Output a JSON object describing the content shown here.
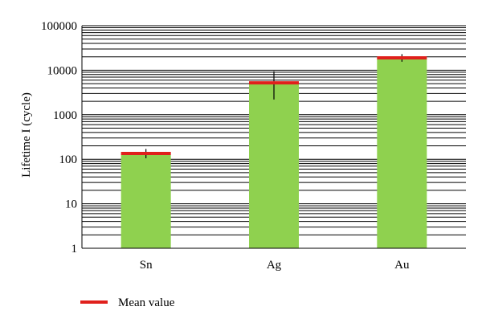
{
  "chart_data": {
    "type": "bar",
    "title": "",
    "xlabel": "",
    "ylabel": "Lifetime I (cycle)",
    "yscale": "log",
    "ylim": [
      1,
      100000
    ],
    "y_ticks": [
      1,
      10,
      100,
      1000,
      10000,
      100000
    ],
    "y_tick_labels": [
      "1",
      "10",
      "100",
      "1000",
      "10000",
      "100000"
    ],
    "categories": [
      "Sn",
      "Ag",
      "Au"
    ],
    "values": [
      125,
      5000,
      18000
    ],
    "mean_values": [
      135,
      5200,
      19000
    ],
    "error_low": [
      105,
      2200,
      15500
    ],
    "error_high": [
      170,
      9500,
      23000
    ],
    "grid": "horizontal minor lines",
    "legend": {
      "placement": "bottom-left",
      "entries": [
        {
          "label": "Mean value",
          "color": "#e0201c"
        }
      ]
    },
    "colors": {
      "bar": "#8fd14f",
      "mean": "#e0201c",
      "grid": "#000000"
    }
  }
}
